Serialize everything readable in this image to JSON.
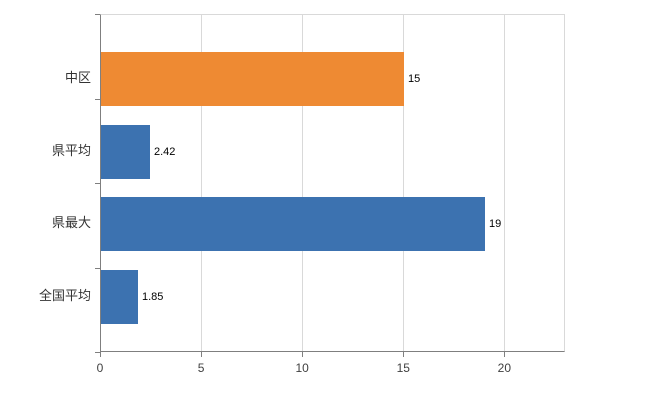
{
  "chart_data": {
    "type": "bar",
    "orientation": "horizontal",
    "title": "",
    "xlabel": "",
    "ylabel": "",
    "categories": [
      "中区",
      "県平均",
      "県最大",
      "全国平均"
    ],
    "values": [
      15,
      2.42,
      19,
      1.85
    ],
    "value_labels": [
      "15",
      "2.42",
      "19",
      "1.85"
    ],
    "bar_colors": [
      "#EE8A33",
      "#3C72B0",
      "#3C72B0",
      "#3C72B0"
    ],
    "xlim": [
      0,
      23
    ],
    "x_ticks": [
      0,
      5,
      10,
      15,
      20
    ],
    "x_tick_labels": [
      "0",
      "5",
      "10",
      "15",
      "20"
    ],
    "grid": true,
    "gridline_color": "#d9d9d9",
    "axis_color": "#7f7f7f",
    "legend": "none",
    "background_color": "#ffffff"
  }
}
